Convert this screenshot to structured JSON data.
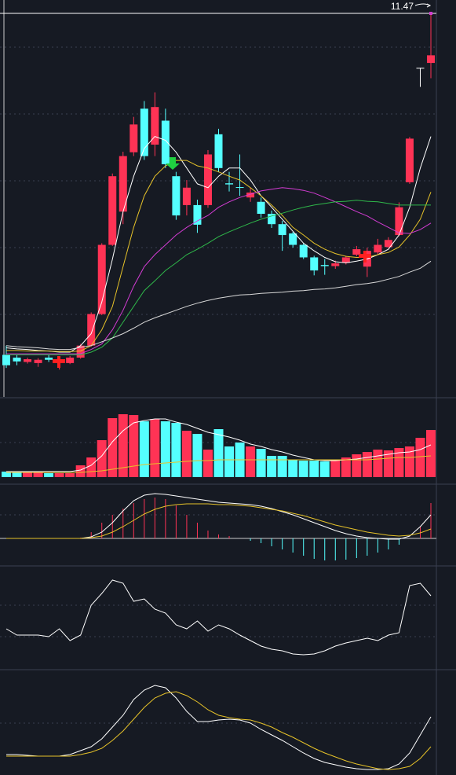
{
  "chart_data": [
    {
      "type": "candlestick",
      "ylim": [
        4.5,
        11.6
      ],
      "up_color": "#ff3355",
      "down_color": "#54ffff",
      "flat_color": "#ffffff",
      "price_line": 11.47,
      "price_line_color": "#ffffff",
      "open": [
        5.2,
        5.15,
        5.07,
        5.05,
        5.15,
        5.07,
        5.05,
        5.15,
        5.37,
        5.95,
        7.22,
        7.83,
        8.92,
        9.72,
        9.06,
        9.5,
        8.48,
        7.95,
        7.95,
        7.95,
        9.25,
        8.35,
        8.28,
        8.09,
        8.01,
        7.79,
        7.6,
        7.43,
        7.22,
        6.99,
        6.85,
        6.83,
        6.89,
        7.04,
        6.82,
        7.08,
        7.18,
        7.4,
        8.37,
        10.47,
        10.56
      ],
      "high": [
        5.37,
        5.2,
        5.15,
        5.14,
        5.2,
        5.15,
        5.18,
        5.4,
        5.98,
        7.25,
        8.53,
        8.93,
        9.57,
        9.86,
        10.02,
        9.72,
        8.56,
        8.41,
        8.05,
        8.96,
        9.35,
        8.56,
        8.88,
        8.27,
        8.09,
        7.85,
        7.66,
        7.46,
        7.25,
        7.02,
        6.96,
        6.93,
        7.02,
        7.2,
        7.17,
        7.33,
        7.36,
        8.0,
        9.2,
        10.47,
        11.47
      ],
      "low": [
        4.96,
        5.01,
        5.04,
        4.98,
        5.07,
        4.93,
        5.03,
        5.13,
        5.35,
        5.93,
        7.2,
        7.6,
        8.85,
        8.78,
        8.85,
        8.63,
        7.68,
        7.76,
        7.44,
        7.9,
        8.56,
        8.2,
        8.12,
        8.01,
        7.72,
        7.53,
        7.11,
        7.17,
        6.96,
        6.66,
        6.67,
        6.78,
        6.86,
        7.01,
        6.63,
        7.05,
        7.16,
        7.38,
        8.34,
        10.12,
        10.28
      ],
      "close": [
        5.01,
        5.08,
        5.12,
        5.11,
        5.11,
        5.1,
        5.15,
        5.37,
        5.95,
        7.22,
        8.48,
        8.85,
        9.43,
        8.85,
        9.75,
        8.7,
        7.76,
        8.27,
        7.59,
        8.88,
        8.63,
        8.33,
        8.27,
        8.18,
        7.79,
        7.6,
        7.4,
        7.22,
        6.99,
        6.75,
        6.83,
        6.88,
        6.99,
        7.14,
        7.11,
        7.22,
        7.31,
        7.91,
        9.17,
        10.47,
        10.7
      ],
      "series": [
        {
          "color": "#ffffff",
          "values": [
            5.33,
            5.31,
            5.3,
            5.28,
            5.27,
            5.25,
            5.25,
            5.37,
            5.59,
            6.17,
            6.96,
            7.83,
            8.48,
            8.99,
            9.21,
            9.14,
            8.92,
            8.63,
            8.34,
            8.27,
            8.48,
            8.63,
            8.63,
            8.41,
            8.12,
            7.91,
            7.69,
            7.47,
            7.25,
            7.11,
            6.99,
            6.91,
            6.89,
            6.92,
            6.96,
            7.04,
            7.14,
            7.4,
            7.91,
            8.63,
            9.21
          ]
        },
        {
          "color": "#e6c229",
          "values": [
            5.28,
            5.28,
            5.27,
            5.27,
            5.27,
            5.26,
            5.26,
            5.27,
            5.37,
            5.66,
            6.09,
            6.82,
            7.54,
            8.12,
            8.48,
            8.67,
            8.77,
            8.77,
            8.67,
            8.63,
            8.56,
            8.48,
            8.41,
            8.27,
            8.12,
            7.95,
            7.76,
            7.54,
            7.4,
            7.25,
            7.14,
            7.06,
            7.01,
            6.99,
            6.99,
            7.04,
            7.08,
            7.18,
            7.4,
            7.69,
            8.19
          ]
        },
        {
          "color": "#d23cd2",
          "values": [
            5.22,
            5.22,
            5.22,
            5.22,
            5.22,
            5.22,
            5.22,
            5.22,
            5.3,
            5.4,
            5.66,
            6.02,
            6.46,
            6.82,
            7.04,
            7.22,
            7.4,
            7.54,
            7.66,
            7.76,
            7.91,
            8.01,
            8.09,
            8.15,
            8.21,
            8.24,
            8.27,
            8.25,
            8.22,
            8.17,
            8.09,
            8.01,
            7.92,
            7.83,
            7.75,
            7.64,
            7.54,
            7.44,
            7.43,
            7.5,
            7.62
          ]
        },
        {
          "color": "#2fb84a",
          "values": [
            5.2,
            5.2,
            5.2,
            5.2,
            5.2,
            5.2,
            5.2,
            5.2,
            5.25,
            5.34,
            5.51,
            5.8,
            6.09,
            6.38,
            6.56,
            6.75,
            6.89,
            7.04,
            7.14,
            7.25,
            7.37,
            7.46,
            7.54,
            7.62,
            7.69,
            7.75,
            7.8,
            7.86,
            7.91,
            7.95,
            7.98,
            8.01,
            8.02,
            8.04,
            8.02,
            8.01,
            7.98,
            7.95,
            7.95,
            7.95,
            7.95
          ]
        },
        {
          "color": "#d8d8d8",
          "values": [
            5.37,
            5.35,
            5.34,
            5.33,
            5.31,
            5.3,
            5.3,
            5.34,
            5.37,
            5.44,
            5.51,
            5.59,
            5.69,
            5.8,
            5.88,
            5.95,
            6.02,
            6.09,
            6.15,
            6.2,
            6.24,
            6.27,
            6.3,
            6.31,
            6.33,
            6.34,
            6.35,
            6.37,
            6.38,
            6.4,
            6.41,
            6.43,
            6.46,
            6.49,
            6.51,
            6.54,
            6.59,
            6.64,
            6.72,
            6.79,
            6.92
          ]
        }
      ]
    },
    {
      "type": "bar",
      "ylim": [
        0,
        87
      ],
      "values": [
        7,
        7,
        6,
        6,
        5,
        5,
        5,
        15,
        25,
        47,
        75,
        80,
        79,
        71,
        74,
        71,
        69,
        59,
        55,
        35,
        61,
        39,
        44,
        39,
        36,
        27,
        27,
        22,
        21,
        21,
        20,
        21,
        25,
        29,
        32,
        35,
        34,
        37,
        39,
        50,
        60
      ],
      "colors": [
        "#54ffff",
        "#54ffff",
        "#ff3355",
        "#ff3355",
        "#54ffff",
        "#ff3355",
        "#ff3355",
        "#ff3355",
        "#ff3355",
        "#ff3355",
        "#ff3355",
        "#ff3355",
        "#ff3355",
        "#54ffff",
        "#ff3355",
        "#54ffff",
        "#54ffff",
        "#ff3355",
        "#54ffff",
        "#ff3355",
        "#54ffff",
        "#54ffff",
        "#54ffff",
        "#ff3355",
        "#54ffff",
        "#54ffff",
        "#54ffff",
        "#54ffff",
        "#54ffff",
        "#54ffff",
        "#54ffff",
        "#ff3355",
        "#ff3355",
        "#ff3355",
        "#ff3355",
        "#ff3355",
        "#ff3355",
        "#ff3355",
        "#ff3355",
        "#ff3355",
        "#ff3355"
      ],
      "series": [
        {
          "color": "#ffffff",
          "values": [
            7,
            7,
            7,
            7,
            7,
            7,
            7,
            9,
            15,
            27,
            45,
            59,
            69,
            72,
            74,
            74,
            70,
            67,
            62,
            57,
            54,
            51,
            47,
            42,
            39,
            35,
            32,
            28,
            25,
            22,
            21,
            21,
            22,
            23,
            25,
            27,
            29,
            31,
            32,
            35,
            41
          ]
        },
        {
          "color": "#e6c229",
          "values": [
            6,
            6,
            6,
            6,
            6,
            6,
            6,
            6,
            7,
            8,
            10,
            12,
            14,
            16,
            17,
            18,
            19,
            20,
            21,
            21,
            22,
            22,
            22,
            22,
            22,
            22,
            22,
            22,
            22,
            22,
            22,
            22,
            22,
            22,
            22,
            23,
            24,
            25,
            25,
            26,
            27
          ]
        }
      ]
    },
    {
      "type": "macd",
      "ylim": [
        -30,
        60
      ],
      "up_color": "#ff3355",
      "down_color": "#54ffff",
      "values": [
        0,
        0,
        0,
        0,
        0,
        0,
        0,
        1,
        8,
        20,
        30,
        38,
        45,
        50,
        52,
        50,
        42,
        30,
        20,
        10,
        5,
        3,
        0,
        -3,
        -6,
        -10,
        -14,
        -18,
        -22,
        -26,
        -28,
        -28,
        -27,
        -25,
        -22,
        -18,
        -14,
        -8,
        0,
        15,
        45
      ],
      "series": [
        {
          "color": "#ffffff",
          "values": [
            0,
            0,
            0,
            0,
            0,
            0,
            0,
            0,
            2,
            8,
            20,
            35,
            48,
            55,
            57,
            56,
            54,
            52,
            50,
            48,
            46,
            45,
            44,
            43,
            41,
            38,
            34,
            30,
            25,
            20,
            15,
            10,
            6,
            3,
            1,
            0,
            -1,
            -1,
            3,
            15,
            30
          ]
        },
        {
          "color": "#e6c229",
          "values": [
            0,
            0,
            0,
            0,
            0,
            0,
            0,
            0,
            1,
            3,
            8,
            15,
            23,
            31,
            37,
            41,
            43,
            44,
            44,
            44,
            43,
            43,
            42,
            41,
            39,
            37,
            35,
            32,
            29,
            25,
            21,
            17,
            14,
            11,
            8,
            6,
            4,
            3,
            4,
            7,
            12
          ]
        }
      ]
    },
    {
      "type": "line",
      "ylim": [
        0,
        115
      ],
      "series": [
        {
          "color": "#ffffff",
          "values": [
            50,
            42,
            42,
            42,
            40,
            50,
            35,
            42,
            80,
            95,
            112,
            108,
            85,
            88,
            75,
            70,
            55,
            50,
            60,
            47,
            55,
            50,
            42,
            35,
            28,
            24,
            22,
            18,
            17,
            18,
            22,
            28,
            32,
            35,
            38,
            35,
            42,
            45,
            105,
            108,
            92
          ]
        }
      ]
    },
    {
      "type": "line",
      "ylim": [
        0,
        120
      ],
      "series": [
        {
          "color": "#ffffff",
          "values": [
            25,
            25,
            24,
            23,
            23,
            23,
            25,
            30,
            35,
            45,
            60,
            75,
            95,
            107,
            113,
            110,
            97,
            80,
            67,
            67,
            69,
            70,
            69,
            65,
            57,
            50,
            43,
            35,
            27,
            20,
            15,
            12,
            9,
            7,
            6,
            6,
            7,
            13,
            27,
            50,
            73
          ]
        },
        {
          "color": "#e6c229",
          "values": [
            23,
            23,
            23,
            23,
            23,
            23,
            23,
            25,
            28,
            33,
            43,
            55,
            70,
            85,
            97,
            103,
            105,
            100,
            92,
            82,
            75,
            72,
            70,
            69,
            65,
            60,
            53,
            47,
            40,
            33,
            27,
            22,
            17,
            13,
            10,
            7,
            6,
            7,
            10,
            20,
            35
          ]
        }
      ]
    }
  ]
}
